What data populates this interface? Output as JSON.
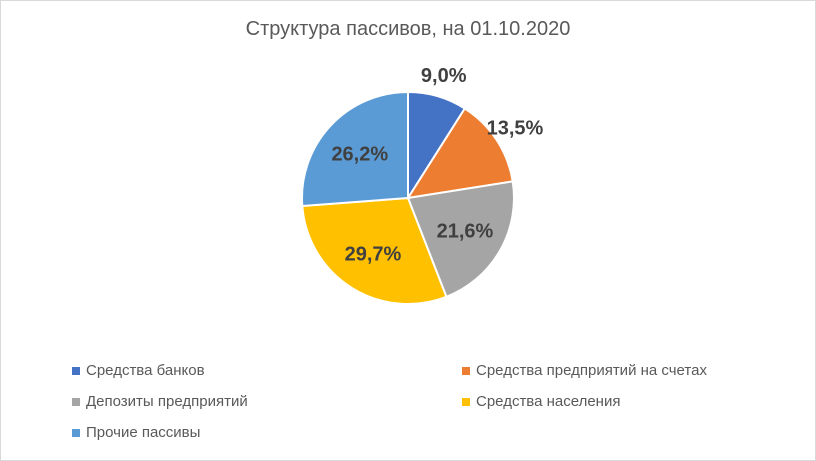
{
  "chart_data": {
    "type": "pie",
    "title": "Структура пассивов, на 01.10.2020",
    "categories": [
      "Средства банков",
      "Средства предприятий на счетах",
      "Депозиты предприятий",
      "Средства населения",
      "Прочие пассивы"
    ],
    "values": [
      9.0,
      13.5,
      21.6,
      29.7,
      26.2
    ],
    "data_labels": [
      "9,0%",
      "13,5%",
      "21,6%",
      "29,7%",
      "26,2%"
    ],
    "colors": [
      "#4472C4",
      "#ED7D31",
      "#A5A5A5",
      "#FFC000",
      "#5B9BD5"
    ],
    "legend_position": "bottom"
  }
}
